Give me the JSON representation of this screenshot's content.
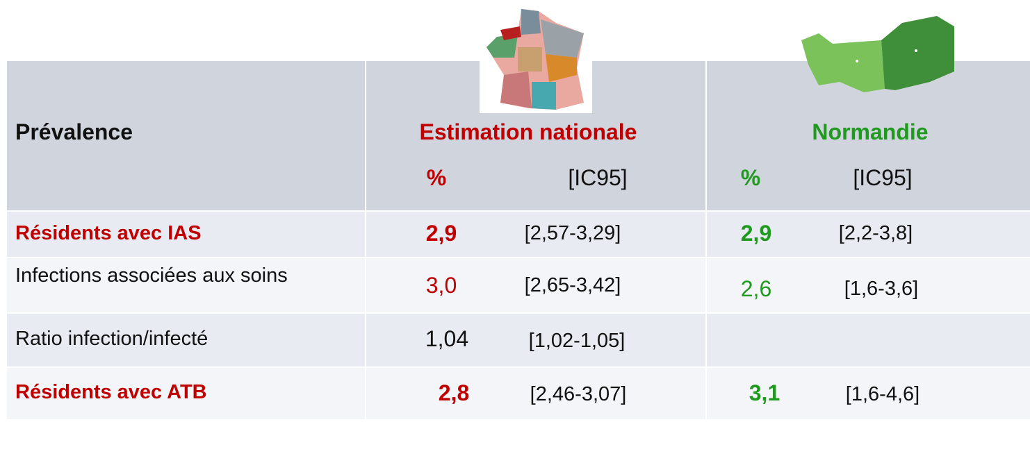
{
  "header": {
    "label": "Prévalence",
    "columns": [
      {
        "title": "Estimation nationale",
        "pct": "%",
        "ic": "[IC95]"
      },
      {
        "title": "Normandie",
        "pct": "%",
        "ic": "[IC95]"
      }
    ]
  },
  "rows": [
    {
      "label": "Résidents avec IAS",
      "national": {
        "value": "2,9",
        "ci": "[2,57-3,29]"
      },
      "regional": {
        "value": "2,9",
        "ci": "[2,2-3,8]"
      }
    },
    {
      "label": "Infections associées aux soins",
      "national": {
        "value": "3,0",
        "ci": "[2,65-3,42]"
      },
      "regional": {
        "value": "2,6",
        "ci": "[1,6-3,6]"
      }
    },
    {
      "label": "Ratio infection/infecté",
      "national": {
        "value": "1,04",
        "ci": "[1,02-1,05]"
      }
    },
    {
      "label": "Résidents avec ATB",
      "national": {
        "value": "2,8",
        "ci": "[2,46-3,07]"
      },
      "regional": {
        "value": "3,1",
        "ci": "[1,6-4,6]"
      }
    }
  ]
}
